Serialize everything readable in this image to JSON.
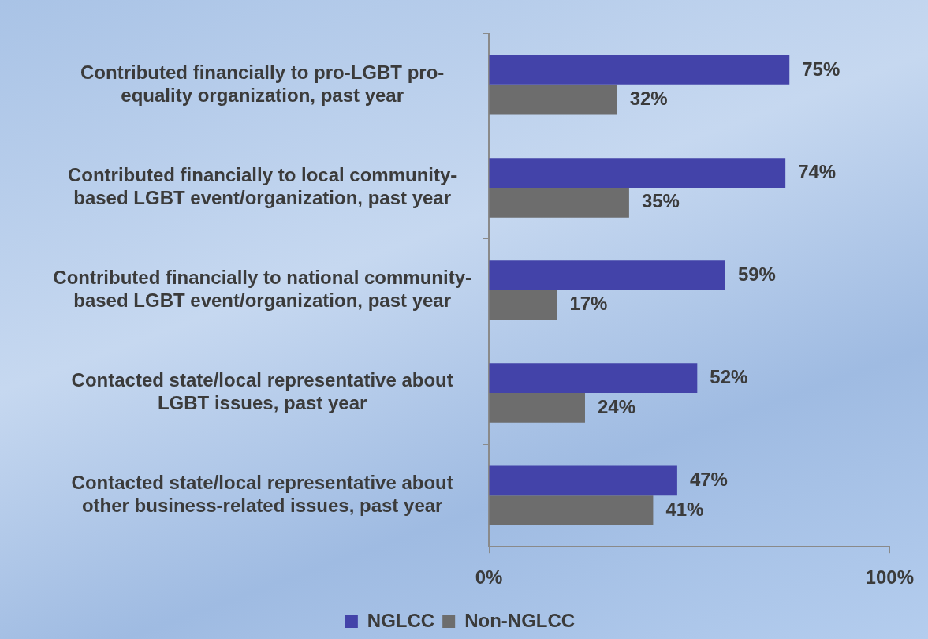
{
  "chart_data": {
    "type": "bar",
    "orientation": "horizontal",
    "categories": [
      "Contributed financially to pro-LGBT pro-equality organization, past year",
      "Contributed financially to local community-based LGBT event/organization, past year",
      "Contributed financially to national community-based LGBT event/organization, past year",
      "Contacted state/local representative about LGBT issues, past year",
      "Contacted state/local representative about other business-related issues, past year"
    ],
    "series": [
      {
        "name": "NGLCC",
        "color": "#4343a9",
        "values": [
          75,
          74,
          59,
          52,
          47
        ],
        "value_labels": [
          "75%",
          "74%",
          "59%",
          "52%",
          "47%"
        ]
      },
      {
        "name": "Non-NGLCC",
        "color": "#6d6d6d",
        "values": [
          32,
          35,
          17,
          24,
          41
        ],
        "value_labels": [
          "32%",
          "35%",
          "17%",
          "24%",
          "41%"
        ]
      }
    ],
    "xlim": [
      0,
      100
    ],
    "xticks": [
      {
        "value": 0,
        "label": "0%"
      },
      {
        "value": 100,
        "label": "100%"
      }
    ],
    "grid": false,
    "legend": "bottom"
  }
}
